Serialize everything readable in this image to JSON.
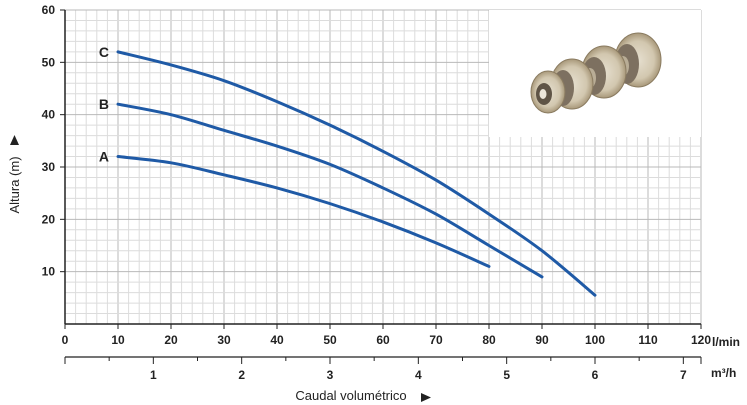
{
  "chart_data": {
    "type": "line",
    "title": "",
    "xlabel": "Caudal volumétrico",
    "ylabel": "Altura (m)",
    "x_unit": "l/min",
    "x2_unit": "m³/h",
    "xlim": [
      0,
      120
    ],
    "ylim": [
      0,
      60
    ],
    "x_ticks": [
      0,
      10,
      20,
      30,
      40,
      50,
      60,
      70,
      80,
      90,
      100,
      110,
      120
    ],
    "y_ticks": [
      10,
      20,
      30,
      40,
      50,
      60
    ],
    "x2_ticks": [
      1,
      2,
      3,
      4,
      5,
      6,
      7
    ],
    "grid": true,
    "series": [
      {
        "name": "A",
        "color": "#1f5aa6",
        "x": [
          10,
          20,
          30,
          40,
          50,
          60,
          70,
          80
        ],
        "y": [
          32,
          30.8,
          28.5,
          26,
          23,
          19.5,
          15.5,
          11
        ]
      },
      {
        "name": "B",
        "color": "#1f5aa6",
        "x": [
          10,
          20,
          30,
          40,
          50,
          60,
          70,
          80,
          90
        ],
        "y": [
          42,
          40,
          37,
          34,
          30.5,
          26,
          21,
          15,
          9
        ]
      },
      {
        "name": "C",
        "color": "#1f5aa6",
        "x": [
          10,
          20,
          30,
          40,
          50,
          60,
          70,
          80,
          90,
          100
        ],
        "y": [
          52,
          49.5,
          46.5,
          42.5,
          38,
          33,
          27.5,
          21,
          14,
          5.5
        ]
      }
    ]
  },
  "image": {
    "name": "pump-impellers-photo"
  }
}
